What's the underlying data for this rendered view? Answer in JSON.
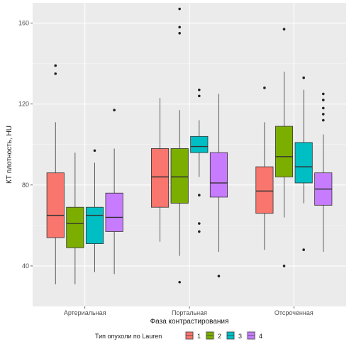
{
  "chart_data": {
    "type": "boxplot",
    "xlabel": "Фаза контрастирования",
    "ylabel": "КТ плотность, HU",
    "ylim": [
      20,
      170
    ],
    "yticks": [
      40,
      80,
      120,
      160
    ],
    "categories": [
      "Артериальная",
      "Портальная",
      "Отсроченная"
    ],
    "legend": {
      "title": "Тип опухоли по Lauren",
      "placement": "bottom",
      "entries": [
        "1",
        "2",
        "3",
        "4"
      ]
    },
    "colors": [
      "#F8766D",
      "#7CAE00",
      "#00BFC4",
      "#C77CFF"
    ],
    "background": "#EBEBEB",
    "grid": true,
    "boxes": [
      {
        "category": 0,
        "group": 0,
        "whisker_low": 31,
        "q1": 54,
        "median": 65,
        "q3": 86,
        "whisker_high": 111,
        "outliers": [
          135,
          139
        ]
      },
      {
        "category": 0,
        "group": 1,
        "whisker_low": 31,
        "q1": 49,
        "median": 61,
        "q3": 69,
        "whisker_high": 96,
        "outliers": []
      },
      {
        "category": 0,
        "group": 2,
        "whisker_low": 37,
        "q1": 51,
        "median": 65,
        "q3": 69,
        "whisker_high": 91,
        "outliers": [
          97
        ]
      },
      {
        "category": 0,
        "group": 3,
        "whisker_low": 36,
        "q1": 57,
        "median": 64,
        "q3": 76,
        "whisker_high": 98,
        "outliers": [
          117
        ]
      },
      {
        "category": 1,
        "group": 0,
        "whisker_low": 52,
        "q1": 69,
        "median": 84,
        "q3": 98,
        "whisker_high": 123,
        "outliers": []
      },
      {
        "category": 1,
        "group": 1,
        "whisker_low": 45,
        "q1": 71,
        "median": 84,
        "q3": 98,
        "whisker_high": 117,
        "outliers": [
          32,
          155,
          158,
          167
        ]
      },
      {
        "category": 1,
        "group": 2,
        "whisker_low": 84,
        "q1": 96,
        "median": 99,
        "q3": 104,
        "whisker_high": 112,
        "outliers": [
          57,
          61,
          75,
          124,
          127
        ]
      },
      {
        "category": 1,
        "group": 3,
        "whisker_low": 47,
        "q1": 74,
        "median": 81,
        "q3": 96,
        "whisker_high": 125,
        "outliers": [
          35
        ]
      },
      {
        "category": 2,
        "group": 0,
        "whisker_low": 48,
        "q1": 66,
        "median": 77,
        "q3": 89,
        "whisker_high": 111,
        "outliers": [
          128
        ]
      },
      {
        "category": 2,
        "group": 1,
        "whisker_low": 64,
        "q1": 84,
        "median": 94,
        "q3": 109,
        "whisker_high": 136,
        "outliers": [
          40,
          157
        ]
      },
      {
        "category": 2,
        "group": 2,
        "whisker_low": 71,
        "q1": 81,
        "median": 89,
        "q3": 101,
        "whisker_high": 127,
        "outliers": [
          48,
          133
        ]
      },
      {
        "category": 2,
        "group": 3,
        "whisker_low": 47,
        "q1": 70,
        "median": 78,
        "q3": 86,
        "whisker_high": 105,
        "outliers": [
          112,
          115,
          118,
          122,
          125
        ]
      }
    ]
  }
}
